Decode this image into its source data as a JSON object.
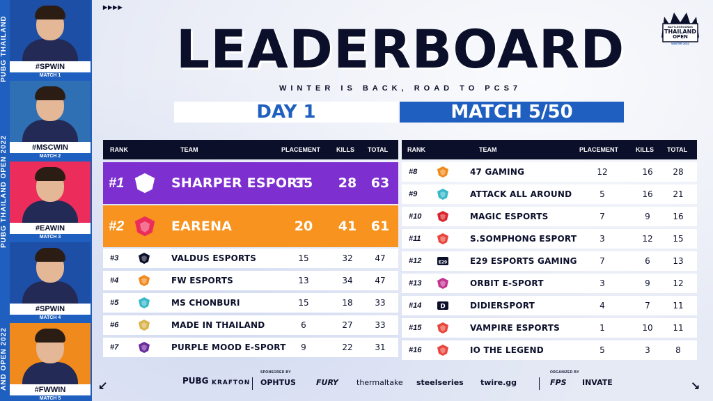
{
  "side_text": {
    "top": "PUBG THAILAND",
    "middle": "PUBG THAILAND OPEN 2022",
    "bottom": "AND OPEN 2022"
  },
  "winners": [
    {
      "tag": "#SPWIN",
      "match": "MATCH 1",
      "bg": "#1e4fa6"
    },
    {
      "tag": "#MSCWIN",
      "match": "MATCH 2",
      "bg": "#2f6fb3"
    },
    {
      "tag": "#EAWIN",
      "match": "MATCH 3",
      "bg": "#ec2c5a"
    },
    {
      "tag": "#SPWIN",
      "match": "MATCH 4",
      "bg": "#1e4fa6"
    },
    {
      "tag": "#FWWIN",
      "match": "MATCH 5",
      "bg": "#f08a1d"
    }
  ],
  "header": {
    "arrows": "▶▶▶▶",
    "title": "LEADERBOARD",
    "subtitle": "WINTER IS BACK, ROAD TO PCS7",
    "day": "DAY 1",
    "match": "MATCH 5/50"
  },
  "event_logo": {
    "line1": "BATTLEGROUNDS",
    "line2": "THAILAND",
    "line3": "OPEN",
    "line4": "WINTER 2022"
  },
  "columns": {
    "rank": "RANK",
    "team": "TEAM",
    "placement": "PLACEMENT",
    "kills": "KILLS",
    "total": "TOTAL"
  },
  "standings_left": [
    {
      "rank": "#1",
      "team": "SHARPER ESPORT",
      "placement": "35",
      "kills": "28",
      "total": "63",
      "logo_color": "#ffffff",
      "logo_sub": "SHARPER"
    },
    {
      "rank": "#2",
      "team": "EARENA",
      "placement": "20",
      "kills": "41",
      "total": "61",
      "logo_color": "#ec2c5a"
    },
    {
      "rank": "#3",
      "team": "VALDUS ESPORTS",
      "placement": "15",
      "kills": "32",
      "total": "47",
      "logo_color": "#0b0f2a"
    },
    {
      "rank": "#4",
      "team": "FW ESPORTS",
      "placement": "13",
      "kills": "34",
      "total": "47",
      "logo_color": "#f08a1d"
    },
    {
      "rank": "#5",
      "team": "MS CHONBURI",
      "placement": "15",
      "kills": "18",
      "total": "33",
      "logo_color": "#36b8c9"
    },
    {
      "rank": "#6",
      "team": "MADE IN THAILAND",
      "placement": "6",
      "kills": "27",
      "total": "33",
      "logo_color": "#d9b24a"
    },
    {
      "rank": "#7",
      "team": "PURPLE MOOD E-SPORT",
      "placement": "9",
      "kills": "22",
      "total": "31",
      "logo_color": "#6a2a9c"
    }
  ],
  "standings_right": [
    {
      "rank": "#8",
      "team": "47 GAMING",
      "placement": "12",
      "kills": "16",
      "total": "28",
      "logo_color": "#f08a1d"
    },
    {
      "rank": "#9",
      "team": "ATTACK ALL AROUND",
      "placement": "5",
      "kills": "16",
      "total": "21",
      "logo_color": "#36b8c9"
    },
    {
      "rank": "#10",
      "team": "MAGIC ESPORTS",
      "placement": "7",
      "kills": "9",
      "total": "16",
      "logo_color": "#d8232a"
    },
    {
      "rank": "#11",
      "team": "S.SOMPHONG ESPORT",
      "placement": "3",
      "kills": "12",
      "total": "15",
      "logo_color": "#e8453c"
    },
    {
      "rank": "#12",
      "team": "E29 ESPORTS GAMING",
      "placement": "7",
      "kills": "6",
      "total": "13",
      "logo_color": "#0b0f2a",
      "logo_text": "E29"
    },
    {
      "rank": "#13",
      "team": "ORBIT E-SPORT",
      "placement": "3",
      "kills": "9",
      "total": "12",
      "logo_color": "#c2338f"
    },
    {
      "rank": "#14",
      "team": "DIDIERSPORT",
      "placement": "4",
      "kills": "7",
      "total": "11",
      "logo_color": "#0b0f2a",
      "logo_text": "D"
    },
    {
      "rank": "#15",
      "team": "VAMPIRE ESPORTS",
      "placement": "1",
      "kills": "10",
      "total": "11",
      "logo_color": "#e8453c"
    },
    {
      "rank": "#16",
      "team": "IO THE LEGEND",
      "placement": "5",
      "kills": "3",
      "total": "8",
      "logo_color": "#e8453c"
    }
  ],
  "footer": {
    "sponsored_by": "SPONSORED BY",
    "organized_by": "ORGANIZED BY",
    "logos": {
      "pubg": "PUBG",
      "krafton": "KRAFTON",
      "ophtus": "OPHTUS",
      "fury": "FURY",
      "thermaltake": "thermaltake",
      "steelseries": "steelseries",
      "twire": "twire.gg",
      "fps": "FPS",
      "invate": "INVATE"
    }
  },
  "colors": {
    "primary_blue": "#1f5fbf",
    "navy": "#0b0f2a",
    "first_place": "#7d2fd0",
    "second_place": "#f7931e"
  }
}
